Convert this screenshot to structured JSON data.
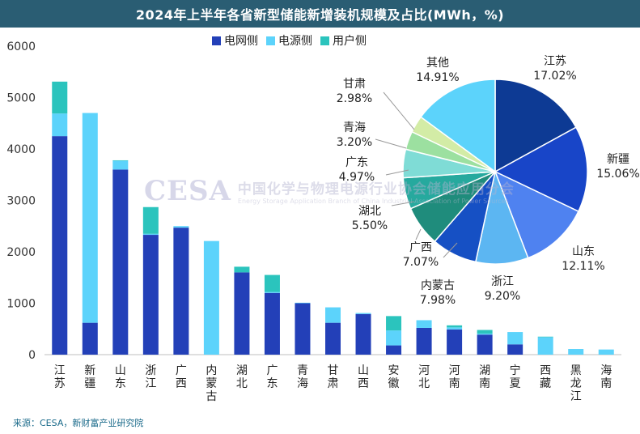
{
  "title": "2024年上半年各省新型储能新增装机规模及占比(MWh，%)",
  "source": "来源：CESA，新财富产业研究院",
  "watermark": {
    "logo": "CESA",
    "cn": "中国化学与物理电源行业协会储能应用分会",
    "en": "Energy Storage Application Branch of China Industrial Association of Power Sources"
  },
  "colors": {
    "grid": "#2340b8",
    "source": "#5cd3fb",
    "user": "#2bc4bd"
  },
  "chart_data": [
    {
      "type": "bar",
      "stacked": true,
      "categories": [
        "江苏",
        "新疆",
        "山东",
        "浙江",
        "广西",
        "内蒙古",
        "湖北",
        "广东",
        "青海",
        "甘肃",
        "山西",
        "安徽",
        "河北",
        "河南",
        "湖南",
        "宁夏",
        "西藏",
        "黑龙江",
        "海南"
      ],
      "series": [
        {
          "name": "电网侧",
          "color": "#2340b8",
          "values": [
            4250,
            620,
            3600,
            2330,
            2470,
            0,
            1600,
            1200,
            1000,
            620,
            790,
            180,
            520,
            490,
            390,
            200,
            0,
            0,
            0
          ]
        },
        {
          "name": "电源侧",
          "color": "#5cd3fb",
          "values": [
            440,
            4080,
            170,
            20,
            30,
            2210,
            0,
            20,
            10,
            300,
            20,
            290,
            150,
            40,
            20,
            240,
            340,
            110,
            100
          ]
        },
        {
          "name": "用户侧",
          "color": "#2bc4bd",
          "values": [
            620,
            0,
            10,
            520,
            0,
            0,
            110,
            330,
            0,
            0,
            0,
            280,
            0,
            40,
            70,
            0,
            10,
            0,
            0
          ]
        }
      ],
      "yticks": [
        0,
        1000,
        2000,
        3000,
        4000,
        5000,
        6000
      ],
      "ylim": [
        0,
        6000
      ],
      "legend": "top"
    },
    {
      "type": "pie",
      "labels": [
        "江苏",
        "新疆",
        "山东",
        "浙江",
        "内蒙古",
        "广西",
        "湖北",
        "广东",
        "青海",
        "甘肃",
        "其他"
      ],
      "values": [
        17.02,
        15.06,
        12.11,
        9.2,
        7.98,
        7.07,
        5.5,
        4.97,
        3.2,
        2.98,
        14.91
      ],
      "display": [
        "17.02%",
        "15.06%",
        "12.11%",
        "9.20%",
        "7.98%",
        "7.07%",
        "5.50%",
        "4.97%",
        "3.20%",
        "2.98%",
        "14.91%"
      ],
      "colors": [
        "#0d3a94",
        "#1845c8",
        "#4f82f0",
        "#5cb6f2",
        "#1650c4",
        "#1f8c7c",
        "#26a99e",
        "#7fdcd6",
        "#9ce0a0",
        "#d3eca6",
        "#5cd3fb"
      ]
    }
  ]
}
